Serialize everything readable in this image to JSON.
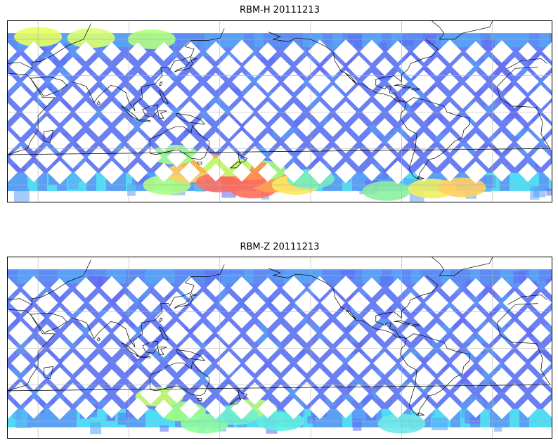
{
  "panels": [
    {
      "title": "RBM-H 20111213",
      "hotspots": [
        {
          "lon": -178,
          "lat": -63,
          "color": "#ff6e5a"
        },
        {
          "lon": -165,
          "lat": -58,
          "color": "#ffa050"
        },
        {
          "lon": -150,
          "lat": -60,
          "color": "#ffe860"
        },
        {
          "lon": -172,
          "lat": -48,
          "color": "#a0ff78"
        },
        {
          "lon": -140,
          "lat": -55,
          "color": "#70f0c0"
        },
        {
          "lon": -90,
          "lat": -65,
          "color": "#8cf0a0"
        },
        {
          "lon": -60,
          "lat": -63,
          "color": "#f0f060"
        },
        {
          "lon": -40,
          "lat": -62,
          "color": "#ffd060"
        },
        {
          "lon": 40,
          "lat": 62,
          "color": "#e8ff60"
        },
        {
          "lon": 75,
          "lat": 61,
          "color": "#d8ff70"
        },
        {
          "lon": 115,
          "lat": 60,
          "color": "#b0ff80"
        },
        {
          "lon": 125,
          "lat": -60,
          "color": "#b0ff80"
        },
        {
          "lon": 140,
          "lat": -50,
          "color": "#ffd060"
        },
        {
          "lon": 150,
          "lat": -42,
          "color": "#ffb050"
        },
        {
          "lon": 160,
          "lat": -58,
          "color": "#ff7060"
        },
        {
          "lon": 175,
          "lat": -55,
          "color": "#ff6a5a"
        },
        {
          "lon": 180,
          "lat": -48,
          "color": "#ff9050"
        },
        {
          "lon": 165,
          "lat": -45,
          "color": "#c0ff70"
        },
        {
          "lon": 130,
          "lat": -35,
          "color": "#a0ff90"
        }
      ]
    },
    {
      "title": "RBM-Z 20111213",
      "hotspots": [
        {
          "lon": -178,
          "lat": -50,
          "color": "#b8ff78"
        },
        {
          "lon": -160,
          "lat": -60,
          "color": "#60f0e0"
        },
        {
          "lon": -80,
          "lat": -62,
          "color": "#70e8e8"
        },
        {
          "lon": 120,
          "lat": -40,
          "color": "#c8ff70"
        },
        {
          "lon": 135,
          "lat": -52,
          "color": "#a0ff80"
        },
        {
          "lon": 150,
          "lat": -62,
          "color": "#90ffa0"
        },
        {
          "lon": 170,
          "lat": -55,
          "color": "#70f0d0"
        }
      ]
    }
  ],
  "colors": {
    "track_low": "#6464f0",
    "track_mid": "#5aa0f5",
    "track_cyan": "#50dcf5",
    "coastline": "#000000",
    "grid": "#b0b0b0"
  }
}
